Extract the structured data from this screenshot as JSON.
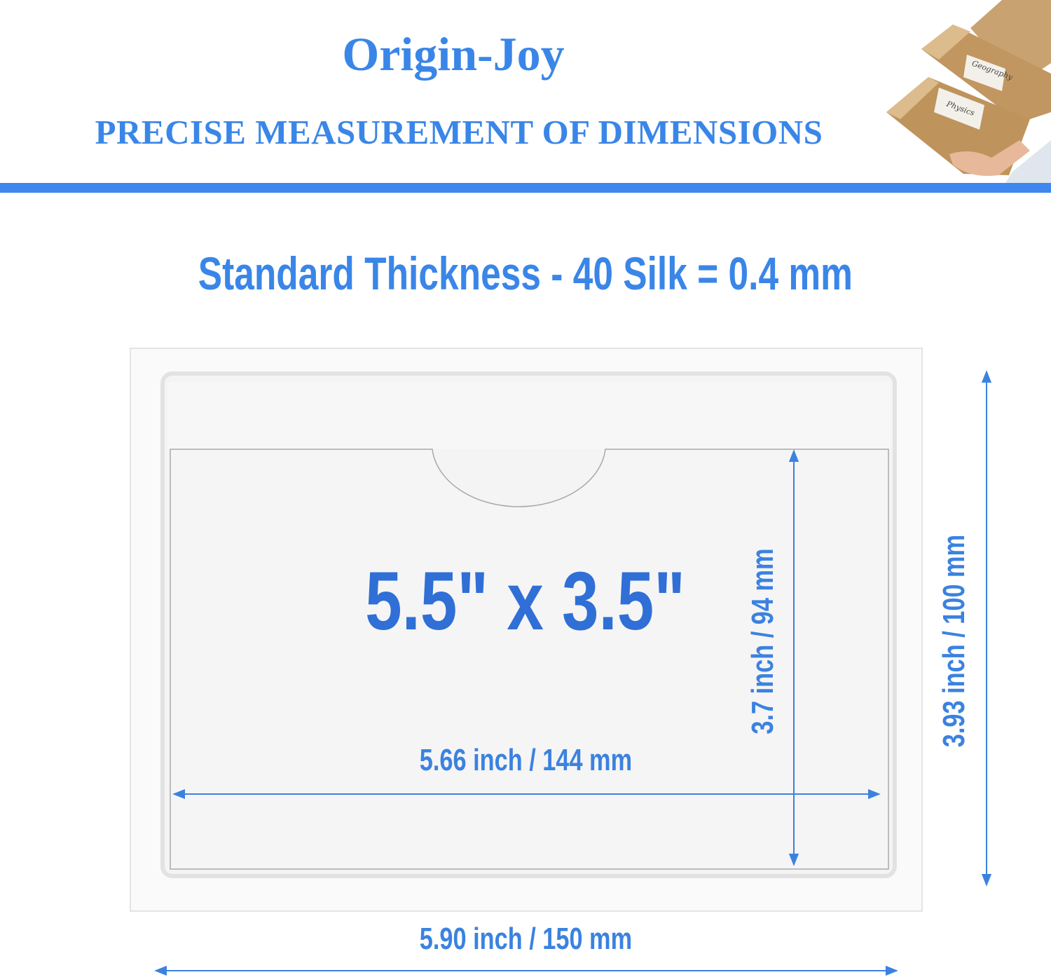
{
  "header": {
    "brand": "Origin-Joy",
    "subtitle": "PRECISE MEASUREMENT OF DIMENSIONS",
    "photo_labels": [
      "Geography",
      "Physics"
    ]
  },
  "headline": "Standard Thickness - 40 Silk = 0.4 mm",
  "product": {
    "size_label": "5.5\" x  3.5\"",
    "inner_width": "5.66 inch / 144 mm",
    "inner_height": "3.7 inch / 94 mm",
    "outer_height": "3.93 inch / 100 mm",
    "outer_width": "5.90 inch / 150 mm"
  },
  "colors": {
    "accent": "#3d87ee",
    "text_blue": "#3a86e8",
    "size_blue": "#2f6fd6"
  }
}
